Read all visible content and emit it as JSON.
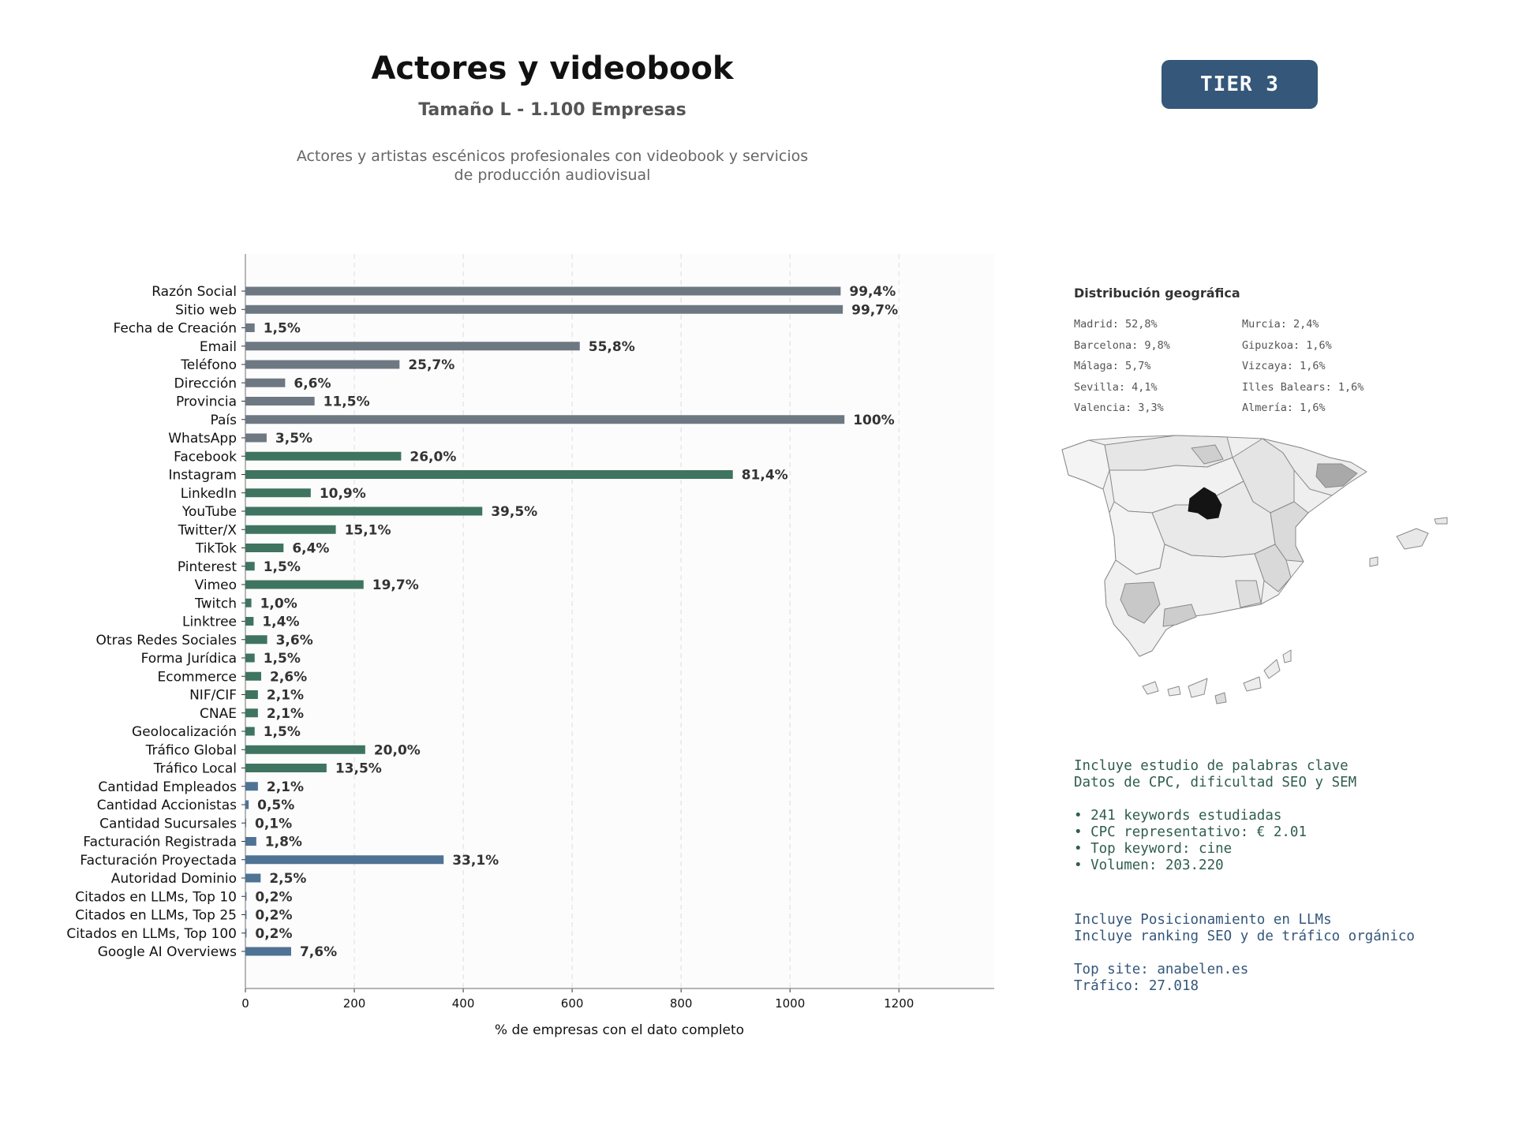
{
  "header": {
    "title": "Actores y videobook",
    "subtitle": "Tamaño L - 1.100 Empresas",
    "description_line1": "Actores y artistas escénicos profesionales con videobook y servicios",
    "description_line2": "de producción audiovisual",
    "tier_label": "TIER 3"
  },
  "colors": {
    "basic": "#6e7883",
    "social": "#3f7460",
    "business": "#4f7394",
    "badge": "#34577a",
    "map_madrid": "#141414"
  },
  "chart_data": {
    "type": "bar",
    "orientation": "horizontal",
    "xlabel": "% de empresas con el dato completo",
    "xlim": [
      0,
      1375
    ],
    "xticks": [
      0,
      200,
      400,
      600,
      800,
      1000,
      1200
    ],
    "grid": "vertical dashed",
    "categories": [
      "Razón Social",
      "Sitio web",
      "Fecha de Creación",
      "Email",
      "Teléfono",
      "Dirección",
      "Provincia",
      "País",
      "WhatsApp",
      "Facebook",
      "Instagram",
      "LinkedIn",
      "YouTube",
      "Twitter/X",
      "TikTok",
      "Pinterest",
      "Vimeo",
      "Twitch",
      "Linktree",
      "Otras Redes Sociales",
      "Forma Jurídica",
      "Ecommerce",
      "NIF/CIF",
      "CNAE",
      "Geolocalización",
      "Tráfico Global",
      "Tráfico Local",
      "Cantidad Empleados",
      "Cantidad Accionistas",
      "Cantidad Sucursales",
      "Facturación Registrada",
      "Facturación Proyectada",
      "Autoridad Dominio",
      "Citados en LLMs, Top 10",
      "Citados en LLMs, Top 25",
      "Citados en LLMs, Top 100",
      "Google AI Overviews"
    ],
    "values": [
      1093,
      1097,
      17,
      614,
      283,
      73,
      127,
      1100,
      39,
      286,
      895,
      120,
      435,
      166,
      70,
      17,
      217,
      11,
      15,
      40,
      17,
      29,
      23,
      23,
      17,
      220,
      149,
      23,
      6,
      1,
      20,
      364,
      28,
      2,
      2,
      2,
      84
    ],
    "labels": [
      "99,4%",
      "99,7%",
      "1,5%",
      "55,8%",
      "25,7%",
      "6,6%",
      "11,5%",
      "100%",
      "3,5%",
      "26,0%",
      "81,4%",
      "10,9%",
      "39,5%",
      "15,1%",
      "6,4%",
      "1,5%",
      "19,7%",
      "1,0%",
      "1,4%",
      "3,6%",
      "1,5%",
      "2,6%",
      "2,1%",
      "2,1%",
      "1,5%",
      "20,0%",
      "13,5%",
      "2,1%",
      "0,5%",
      "0,1%",
      "1,8%",
      "33,1%",
      "2,5%",
      "0,2%",
      "0,2%",
      "0,2%",
      "7,6%"
    ],
    "groups": [
      "basic",
      "basic",
      "basic",
      "basic",
      "basic",
      "basic",
      "basic",
      "basic",
      "basic",
      "social",
      "social",
      "social",
      "social",
      "social",
      "social",
      "social",
      "social",
      "social",
      "social",
      "social",
      "social",
      "social",
      "social",
      "social",
      "social",
      "social",
      "social",
      "business",
      "business",
      "business",
      "business",
      "business",
      "business",
      "business",
      "business",
      "business",
      "business"
    ]
  },
  "geo": {
    "title": "Distribución geográfica",
    "col1": [
      "Madrid: 52,8%",
      "Barcelona: 9,8%",
      "Málaga: 5,7%",
      "Sevilla: 4,1%",
      "Valencia: 3,3%"
    ],
    "col2": [
      "Murcia: 2,4%",
      "Gipuzkoa: 1,6%",
      "Vizcaya: 1,6%",
      "Illes Balears: 1,6%",
      "Almería: 1,6%"
    ]
  },
  "keywords": {
    "line1": "Incluye estudio de palabras clave",
    "line2": "Datos de CPC, dificultad SEO y SEM",
    "bullet1": "• 241 keywords estudiadas",
    "bullet2": "• CPC representativo: € 2.01",
    "bullet3": "• Top keyword: cine",
    "bullet4": "• Volumen: 203.220"
  },
  "llm": {
    "line1": "Incluye Posicionamiento en LLMs",
    "line2": "Incluye ranking SEO y de tráfico orgánico",
    "top_site": "Top site: anabelen.es",
    "traffic": "Tráfico: 27.018"
  }
}
